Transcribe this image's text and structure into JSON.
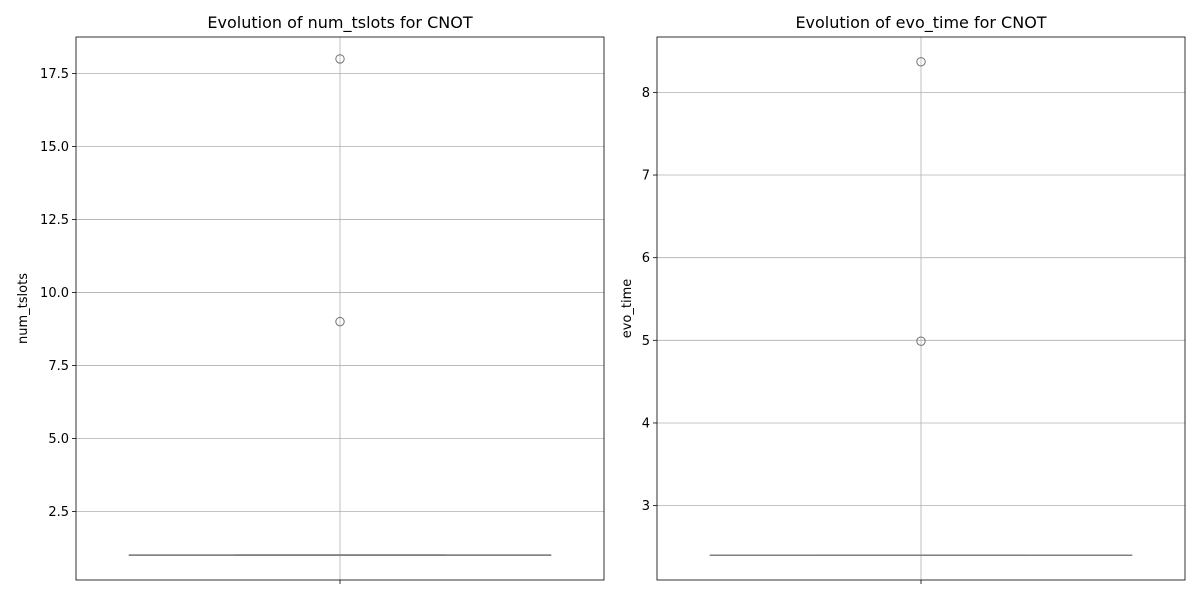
{
  "chart_data": [
    {
      "type": "box",
      "title": "Evolution of num_tslots for CNOT",
      "xlabel": "",
      "ylabel": "num_tslots",
      "ylim": [
        0.15,
        18.75
      ],
      "yticks": [
        2.5,
        5.0,
        7.5,
        10.0,
        12.5,
        15.0,
        17.5
      ],
      "ytick_labels": [
        "2.5",
        "5.0",
        "7.5",
        "10.0",
        "12.5",
        "15.0",
        "17.5"
      ],
      "box": {
        "whisker_low": 1,
        "q1": 1,
        "median": 1,
        "q3": 1,
        "whisker_high": 1
      },
      "outliers": [
        18,
        9
      ],
      "grid": true,
      "colors": {
        "box": "#808080",
        "outlier": "#707070",
        "grid": "#b0b0b0",
        "vline": "#b0b0b0"
      }
    },
    {
      "type": "box",
      "title": "Evolution of evo_time for CNOT",
      "xlabel": "",
      "ylabel": "evo_time",
      "ylim": [
        2.1,
        8.67
      ],
      "yticks": [
        3,
        4,
        5,
        6,
        7,
        8
      ],
      "ytick_labels": [
        "3",
        "4",
        "5",
        "6",
        "7",
        "8"
      ],
      "box": {
        "whisker_low": 2.4,
        "q1": 2.4,
        "median": 2.4,
        "q3": 2.4,
        "whisker_high": 2.4
      },
      "outliers": [
        8.37,
        4.99
      ],
      "grid": true,
      "colors": {
        "box": "#808080",
        "outlier": "#707070",
        "grid": "#b0b0b0",
        "vline": "#b0b0b0"
      }
    }
  ]
}
